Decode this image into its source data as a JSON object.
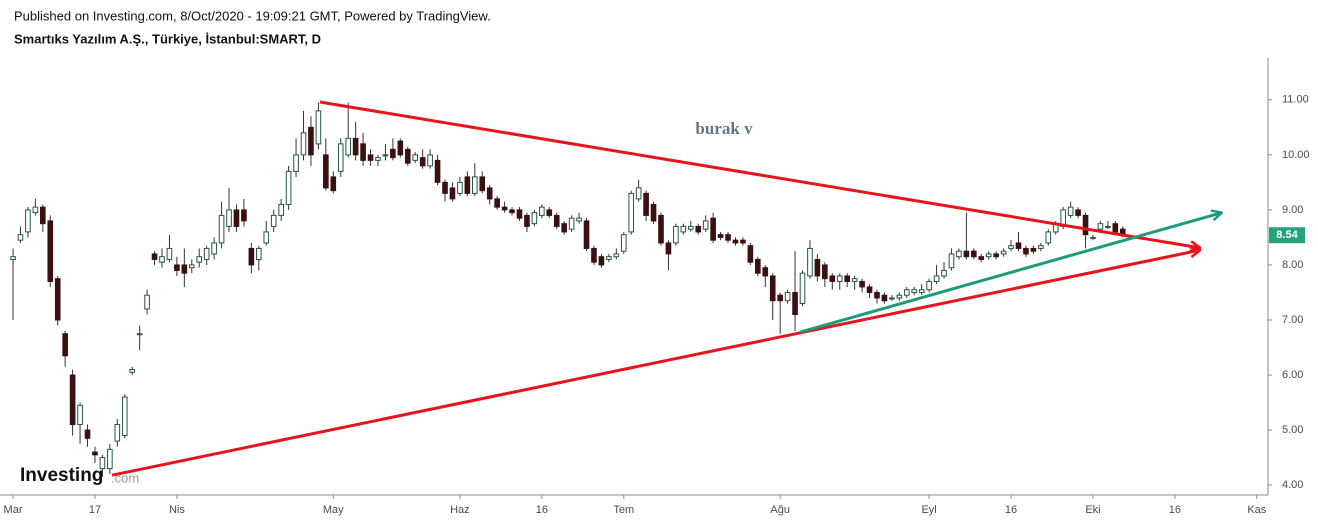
{
  "header": {
    "published": "Published on Investing.com, 8/Oct/2020 - 19:09:21 GMT, Powered by TradingView.",
    "symbol": "Smartıks Yazılım A.Ş., Türkiye, İstanbul:SMART, D"
  },
  "logo": {
    "name": "Investing",
    "suffix": ".com"
  },
  "chart_data": {
    "type": "candlestick",
    "annotation": "burak v",
    "up_color": "#ffffff",
    "up_border": "#24583e",
    "down_color": "#3a1010",
    "wick_color": "#333333",
    "tag_color": "#26a17c",
    "xlim": [
      -1.75,
      168.5
    ],
    "ylim": [
      3.82,
      11.76
    ],
    "xticks": [
      {
        "value": 0,
        "label": "Mar"
      },
      {
        "value": 11,
        "label": "17"
      },
      {
        "value": 22,
        "label": "Nis"
      },
      {
        "value": 43,
        "label": "May"
      },
      {
        "value": 60,
        "label": "Haz"
      },
      {
        "value": 71,
        "label": "16"
      },
      {
        "value": 82,
        "label": "Tem"
      },
      {
        "value": 103,
        "label": "Ağu"
      },
      {
        "value": 123,
        "label": "Eyl"
      },
      {
        "value": 134,
        "label": "16"
      },
      {
        "value": 145,
        "label": "Eki"
      },
      {
        "value": 156,
        "label": "16"
      },
      {
        "value": 167,
        "label": "Kas"
      }
    ],
    "yticks": [
      {
        "value": 4,
        "label": "4.00"
      },
      {
        "value": 5,
        "label": "5.00"
      },
      {
        "value": 6,
        "label": "6.00"
      },
      {
        "value": 7,
        "label": "7.00"
      },
      {
        "value": 8,
        "label": "8.00"
      },
      {
        "value": 9,
        "label": "9.00"
      },
      {
        "value": 10,
        "label": "10.00"
      },
      {
        "value": 11,
        "label": "11.00"
      }
    ],
    "x": [
      0,
      1,
      2,
      3,
      4,
      5,
      6,
      7,
      8,
      9,
      10,
      11,
      12,
      13,
      14,
      15,
      16,
      17,
      18,
      19,
      20,
      21,
      22,
      23,
      24,
      25,
      26,
      27,
      28,
      29,
      30,
      31,
      32,
      33,
      34,
      35,
      36,
      37,
      38,
      39,
      40,
      41,
      42,
      43,
      44,
      45,
      46,
      47,
      48,
      49,
      50,
      51,
      52,
      53,
      54,
      55,
      56,
      57,
      58,
      59,
      60,
      61,
      62,
      63,
      64,
      65,
      66,
      67,
      68,
      69,
      70,
      71,
      72,
      73,
      74,
      75,
      76,
      77,
      78,
      79,
      80,
      81,
      82,
      83,
      84,
      85,
      86,
      87,
      88,
      89,
      90,
      91,
      92,
      93,
      94,
      95,
      96,
      97,
      98,
      99,
      100,
      101,
      102,
      103,
      104,
      105,
      106,
      107,
      108,
      109,
      110,
      111,
      112,
      113,
      114,
      115,
      116,
      117,
      118,
      119,
      120,
      121,
      122,
      123,
      124,
      125,
      126,
      127,
      128,
      129,
      130,
      131,
      132,
      133,
      134,
      135,
      136,
      137,
      138,
      139,
      140,
      141,
      142,
      143,
      144,
      145,
      146,
      147,
      148,
      149
    ],
    "open": [
      8.1,
      8.45,
      8.6,
      8.95,
      9.05,
      8.8,
      7.75,
      6.75,
      6.0,
      5.1,
      5.0,
      4.6,
      4.3,
      4.3,
      4.8,
      4.9,
      6.05,
      6.75,
      7.2,
      8.2,
      8.05,
      8.1,
      8.0,
      8.0,
      7.95,
      8.05,
      8.1,
      8.2,
      8.4,
      8.7,
      9.0,
      9.0,
      8.3,
      8.1,
      8.4,
      8.7,
      8.9,
      9.1,
      9.7,
      10.0,
      10.5,
      10.2,
      10.0,
      9.6,
      9.7,
      10.0,
      10.3,
      10.2,
      10.0,
      9.9,
      10.0,
      10.1,
      10.25,
      10.1,
      9.9,
      9.95,
      9.8,
      9.9,
      9.5,
      9.4,
      9.3,
      9.6,
      9.3,
      9.6,
      9.4,
      9.2,
      9.05,
      9.0,
      9.0,
      8.9,
      8.75,
      8.9,
      9.0,
      8.9,
      8.75,
      8.65,
      8.8,
      8.8,
      8.3,
      8.15,
      8.1,
      8.15,
      8.25,
      8.6,
      9.2,
      9.3,
      9.1,
      8.9,
      8.4,
      8.4,
      8.6,
      8.65,
      8.7,
      8.65,
      8.85,
      8.55,
      8.55,
      8.45,
      8.45,
      8.35,
      8.1,
      7.95,
      7.8,
      7.45,
      7.35,
      7.5,
      7.3,
      7.8,
      8.1,
      8.0,
      7.8,
      7.7,
      7.8,
      7.7,
      7.7,
      7.6,
      7.5,
      7.45,
      7.4,
      7.4,
      7.45,
      7.5,
      7.5,
      7.55,
      7.7,
      7.8,
      7.95,
      8.15,
      8.25,
      8.25,
      8.15,
      8.15,
      8.2,
      8.2,
      8.3,
      8.4,
      8.3,
      8.3,
      8.3,
      8.4,
      8.6,
      8.7,
      8.9,
      9.0,
      8.9,
      8.5,
      8.65,
      8.7,
      8.75,
      8.65
    ],
    "high": [
      8.3,
      8.7,
      9.05,
      9.2,
      9.1,
      8.9,
      7.8,
      6.8,
      6.1,
      5.5,
      5.1,
      4.7,
      4.55,
      4.75,
      5.2,
      5.65,
      6.15,
      6.9,
      7.55,
      8.25,
      8.3,
      8.55,
      8.15,
      8.3,
      8.1,
      8.3,
      8.35,
      8.5,
      9.15,
      9.4,
      9.1,
      9.2,
      8.4,
      8.35,
      8.8,
      9.0,
      9.2,
      9.8,
      10.3,
      10.8,
      10.7,
      10.95,
      10.3,
      9.7,
      10.3,
      10.95,
      10.6,
      10.4,
      10.1,
      10.0,
      10.2,
      10.3,
      10.3,
      10.15,
      10.05,
      10.1,
      10.1,
      10.0,
      9.55,
      9.5,
      9.6,
      9.7,
      9.85,
      9.7,
      9.45,
      9.25,
      9.15,
      9.05,
      9.05,
      8.95,
      9.0,
      9.1,
      9.05,
      8.95,
      8.8,
      8.9,
      8.95,
      8.85,
      8.35,
      8.2,
      8.2,
      8.3,
      8.6,
      9.35,
      9.55,
      9.35,
      9.15,
      8.95,
      8.45,
      8.75,
      8.75,
      8.8,
      8.75,
      8.9,
      8.95,
      8.6,
      8.6,
      8.5,
      8.5,
      8.4,
      8.15,
      8.0,
      7.85,
      7.5,
      7.55,
      8.25,
      7.9,
      8.45,
      8.2,
      8.05,
      7.85,
      7.85,
      7.85,
      7.8,
      7.75,
      7.65,
      7.55,
      7.5,
      7.45,
      7.5,
      7.6,
      7.6,
      7.65,
      7.75,
      8.0,
      8.05,
      8.3,
      8.3,
      8.95,
      8.3,
      8.2,
      8.25,
      8.25,
      8.3,
      8.45,
      8.6,
      8.35,
      8.35,
      8.4,
      8.65,
      8.8,
      9.05,
      9.15,
      9.05,
      8.95,
      8.55,
      8.8,
      8.8,
      8.8,
      8.7
    ],
    "low": [
      7.0,
      8.4,
      8.5,
      8.9,
      8.6,
      7.6,
      6.9,
      6.15,
      4.9,
      4.75,
      4.7,
      4.4,
      4.15,
      4.2,
      4.7,
      4.85,
      6.0,
      6.45,
      7.1,
      8.0,
      7.95,
      8.05,
      7.8,
      7.6,
      7.85,
      7.95,
      8.0,
      8.1,
      8.3,
      8.6,
      8.6,
      8.7,
      7.85,
      7.9,
      8.35,
      8.6,
      8.8,
      9.0,
      9.6,
      9.9,
      9.8,
      10.1,
      9.35,
      9.3,
      9.6,
      9.95,
      9.9,
      9.8,
      9.8,
      9.8,
      9.9,
      9.9,
      9.95,
      9.8,
      9.85,
      9.75,
      9.75,
      9.45,
      9.15,
      9.15,
      9.25,
      9.25,
      9.25,
      9.3,
      9.1,
      9.0,
      8.95,
      8.9,
      8.8,
      8.6,
      8.7,
      8.85,
      8.85,
      8.65,
      8.55,
      8.6,
      8.75,
      8.25,
      8.0,
      7.95,
      8.05,
      8.1,
      8.2,
      8.55,
      9.15,
      8.8,
      8.75,
      8.35,
      7.9,
      8.35,
      8.55,
      8.6,
      8.55,
      8.6,
      8.4,
      8.45,
      8.4,
      8.35,
      8.35,
      8.0,
      7.8,
      7.6,
      7.0,
      6.75,
      7.3,
      6.8,
      7.25,
      7.75,
      7.7,
      7.6,
      7.55,
      7.55,
      7.6,
      7.55,
      7.5,
      7.4,
      7.3,
      7.3,
      7.35,
      7.35,
      7.4,
      7.45,
      7.45,
      7.5,
      7.65,
      7.75,
      7.9,
      8.1,
      8.1,
      8.1,
      8.05,
      8.1,
      8.1,
      8.15,
      8.25,
      8.25,
      8.15,
      8.2,
      8.25,
      8.35,
      8.55,
      8.65,
      8.85,
      8.85,
      8.3,
      8.45,
      8.6,
      8.65,
      8.55,
      8.5
    ],
    "close": [
      8.15,
      8.55,
      9.0,
      9.05,
      8.75,
      7.7,
      7.0,
      6.35,
      5.1,
      5.45,
      4.85,
      4.55,
      4.5,
      4.65,
      5.1,
      5.6,
      6.1,
      6.75,
      7.45,
      8.1,
      8.15,
      8.3,
      7.9,
      7.85,
      8.0,
      8.15,
      8.3,
      8.4,
      8.9,
      9.0,
      8.7,
      8.8,
      8.0,
      8.3,
      8.6,
      8.9,
      9.1,
      9.7,
      10.0,
      10.4,
      10.0,
      10.8,
      9.4,
      9.35,
      10.2,
      10.3,
      10.0,
      9.9,
      9.9,
      9.95,
      10.0,
      9.95,
      10.0,
      9.85,
      10.0,
      9.8,
      10.0,
      9.5,
      9.3,
      9.2,
      9.5,
      9.3,
      9.6,
      9.35,
      9.2,
      9.05,
      9.0,
      8.95,
      8.85,
      8.7,
      8.95,
      9.05,
      8.9,
      8.7,
      8.6,
      8.85,
      8.85,
      8.3,
      8.05,
      8.0,
      8.15,
      8.2,
      8.55,
      9.3,
      9.4,
      8.9,
      8.8,
      8.4,
      8.2,
      8.7,
      8.7,
      8.7,
      8.6,
      8.8,
      8.45,
      8.5,
      8.45,
      8.4,
      8.4,
      8.05,
      7.85,
      7.8,
      7.35,
      7.35,
      7.5,
      7.1,
      7.85,
      8.3,
      7.8,
      7.75,
      7.7,
      7.8,
      7.7,
      7.75,
      7.6,
      7.5,
      7.4,
      7.35,
      7.4,
      7.45,
      7.55,
      7.55,
      7.55,
      7.7,
      7.8,
      7.9,
      8.2,
      8.25,
      8.15,
      8.15,
      8.1,
      8.2,
      8.15,
      8.25,
      8.35,
      8.3,
      8.2,
      8.25,
      8.35,
      8.6,
      8.75,
      9.0,
      9.05,
      8.9,
      8.55,
      8.5,
      8.75,
      8.7,
      8.6,
      8.54
    ],
    "trendlines": [
      {
        "color": "#e8141c",
        "x": [
          41.2,
          159.4
        ],
        "y": [
          10.96,
          8.31
        ]
      },
      {
        "color": "#e8141c",
        "x": [
          13.3,
          159.4
        ],
        "y": [
          4.18,
          8.27
        ]
      },
      {
        "color": "#1e9b7c",
        "x": [
          105.7,
          162.3
        ],
        "y": [
          6.78,
          8.95
        ]
      }
    ]
  }
}
